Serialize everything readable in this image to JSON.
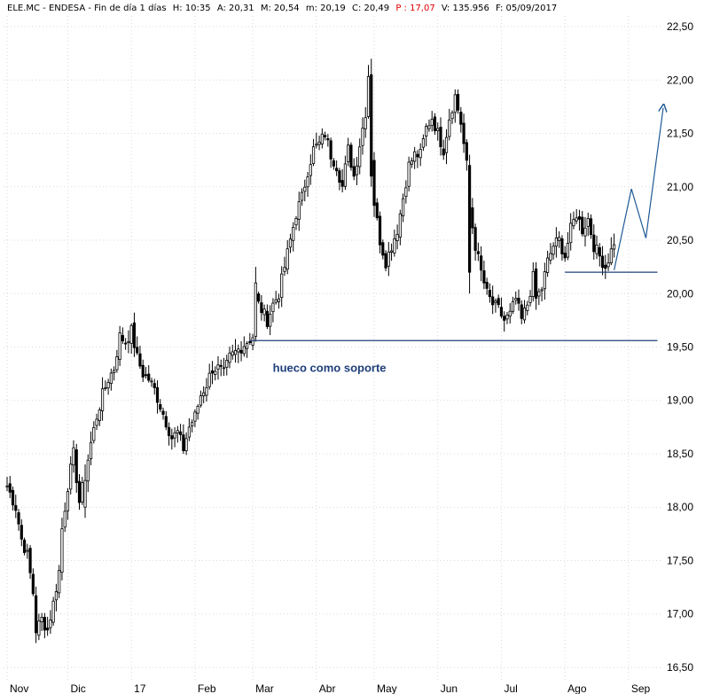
{
  "header": {
    "symbol": "ELE.MC - ENDESA - Fin de día 1 días",
    "high": "H: 10:35",
    "open": "A: 20,31",
    "max": "M: 20,54",
    "min": "m: 20,19",
    "close": "C: 20,49",
    "pe": "P : 17,07",
    "volume": "V: 135.956",
    "date": "F: 05/09/2017"
  },
  "colors": {
    "candle": "#000000",
    "support_line": "#1f3f7a",
    "projection": "#1f5a96",
    "annotation": "#1f3f7a",
    "pe_text": "#e00000"
  },
  "chart_data": {
    "type": "candlestick",
    "ylim": [
      16.4,
      22.6
    ],
    "y_ticks": [
      "16,50",
      "17,00",
      "17,50",
      "18,00",
      "18,50",
      "19,00",
      "19,50",
      "20,00",
      "20,50",
      "21,00",
      "21,50",
      "22,00",
      "22,50"
    ],
    "y_tick_values": [
      16.5,
      17.0,
      17.5,
      18.0,
      18.5,
      19.0,
      19.5,
      20.0,
      20.5,
      21.0,
      21.5,
      22.0,
      22.5
    ],
    "x_ticks": [
      "Nov",
      "Dic",
      "17",
      "Feb",
      "Mar",
      "Abr",
      "May",
      "Jun",
      "Jul",
      "Ago",
      "Sep"
    ],
    "x_tick_days": [
      0,
      21,
      43,
      65,
      85,
      107,
      127,
      149,
      171,
      193,
      215
    ],
    "grid": true,
    "close_path": [
      [
        0,
        18.2
      ],
      [
        3,
        18.0
      ],
      [
        5,
        17.7
      ],
      [
        7,
        17.55
      ],
      [
        9,
        17.2
      ],
      [
        10,
        16.85
      ],
      [
        12,
        16.95
      ],
      [
        14,
        16.85
      ],
      [
        16,
        17.1
      ],
      [
        18,
        17.4
      ],
      [
        19,
        17.8
      ],
      [
        21,
        18.2
      ],
      [
        23,
        18.5
      ],
      [
        25,
        18.05
      ],
      [
        27,
        18.3
      ],
      [
        29,
        18.6
      ],
      [
        31,
        18.85
      ],
      [
        33,
        19.05
      ],
      [
        35,
        19.2
      ],
      [
        37,
        19.3
      ],
      [
        39,
        19.6
      ],
      [
        41,
        19.55
      ],
      [
        43,
        19.65
      ],
      [
        45,
        19.4
      ],
      [
        47,
        19.25
      ],
      [
        49,
        19.2
      ],
      [
        51,
        19.1
      ],
      [
        53,
        18.95
      ],
      [
        55,
        18.8
      ],
      [
        57,
        18.65
      ],
      [
        59,
        18.7
      ],
      [
        61,
        18.55
      ],
      [
        63,
        18.75
      ],
      [
        65,
        18.85
      ],
      [
        67,
        19.05
      ],
      [
        69,
        19.15
      ],
      [
        71,
        19.3
      ],
      [
        73,
        19.3
      ],
      [
        75,
        19.25
      ],
      [
        77,
        19.4
      ],
      [
        79,
        19.45
      ],
      [
        81,
        19.5
      ],
      [
        83,
        19.55
      ],
      [
        85,
        19.6
      ],
      [
        86,
        19.95
      ],
      [
        88,
        19.85
      ],
      [
        90,
        19.75
      ],
      [
        92,
        19.9
      ],
      [
        94,
        20.0
      ],
      [
        96,
        20.25
      ],
      [
        98,
        20.5
      ],
      [
        100,
        20.75
      ],
      [
        102,
        20.9
      ],
      [
        104,
        21.15
      ],
      [
        106,
        21.35
      ],
      [
        108,
        21.4
      ],
      [
        110,
        21.5
      ],
      [
        112,
        21.3
      ],
      [
        114,
        21.2
      ],
      [
        116,
        21.0
      ],
      [
        118,
        21.35
      ],
      [
        120,
        21.1
      ],
      [
        122,
        21.4
      ],
      [
        124,
        21.7
      ],
      [
        125,
        22.05
      ],
      [
        126,
        21.3
      ],
      [
        127,
        20.85
      ],
      [
        129,
        20.5
      ],
      [
        131,
        20.3
      ],
      [
        133,
        20.45
      ],
      [
        135,
        20.6
      ],
      [
        137,
        20.9
      ],
      [
        139,
        21.2
      ],
      [
        141,
        21.3
      ],
      [
        143,
        21.3
      ],
      [
        145,
        21.55
      ],
      [
        147,
        21.65
      ],
      [
        149,
        21.5
      ],
      [
        151,
        21.35
      ],
      [
        153,
        21.65
      ],
      [
        155,
        21.85
      ],
      [
        157,
        21.6
      ],
      [
        159,
        21.2
      ],
      [
        160,
        20.8
      ],
      [
        162,
        20.45
      ],
      [
        164,
        20.2
      ],
      [
        166,
        20.0
      ],
      [
        168,
        19.9
      ],
      [
        170,
        19.85
      ],
      [
        172,
        19.75
      ],
      [
        174,
        19.8
      ],
      [
        176,
        19.95
      ],
      [
        178,
        19.75
      ],
      [
        180,
        19.9
      ],
      [
        182,
        20.15
      ],
      [
        183,
        19.95
      ],
      [
        185,
        20.05
      ],
      [
        187,
        20.3
      ],
      [
        189,
        20.45
      ],
      [
        191,
        20.5
      ],
      [
        193,
        20.35
      ],
      [
        195,
        20.6
      ],
      [
        197,
        20.75
      ],
      [
        199,
        20.6
      ],
      [
        201,
        20.7
      ],
      [
        203,
        20.45
      ],
      [
        205,
        20.35
      ],
      [
        207,
        20.25
      ],
      [
        209,
        20.4
      ],
      [
        210,
        20.49
      ]
    ],
    "special_candles": [
      {
        "day": 27,
        "open": 18.0,
        "close": 18.25,
        "high": 18.4,
        "low": 17.9
      },
      {
        "day": 126,
        "open": 22.05,
        "close": 21.1,
        "high": 22.2,
        "low": 21.0
      },
      {
        "day": 160,
        "open": 21.2,
        "close": 20.2,
        "high": 21.3,
        "low": 20.0
      },
      {
        "day": 86,
        "open": 19.6,
        "close": 20.1,
        "high": 20.25,
        "low": 19.55
      }
    ],
    "support_lines": [
      {
        "day_start": 84,
        "day_end": 225,
        "value": 19.56
      },
      {
        "day_start": 193,
        "day_end": 225,
        "value": 20.2
      }
    ],
    "projection_path": [
      [
        210,
        20.22
      ],
      [
        216,
        20.98
      ],
      [
        221,
        20.52
      ],
      [
        227,
        21.74
      ]
    ],
    "annotations": [
      {
        "text": "hueco como soporte",
        "day": 118,
        "value": 19.3
      }
    ]
  }
}
